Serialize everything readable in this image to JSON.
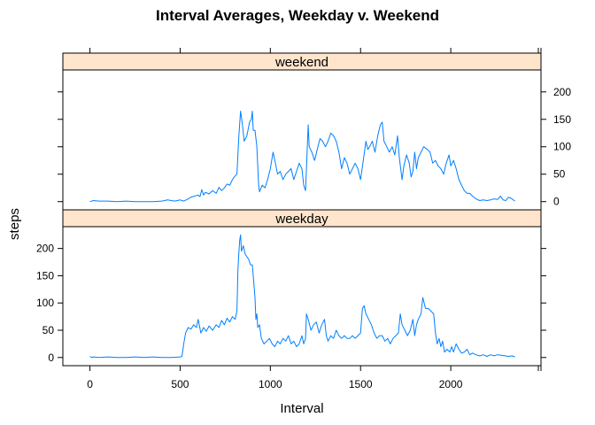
{
  "chart_data": {
    "type": "line",
    "title": "Interval Averages, Weekday v. Weekend",
    "xlabel": "Interval",
    "ylabel": "steps",
    "xlim": [
      -150,
      2500
    ],
    "ylim": [
      -15,
      240
    ],
    "x_ticks": [
      0,
      500,
      1000,
      1500,
      2000
    ],
    "y_ticks": [
      0,
      50,
      100,
      150,
      200
    ],
    "grid": false,
    "line_color": "#0080ff",
    "strip_color": "#ffe5cc",
    "panels": [
      {
        "strip_label": "weekend",
        "points": [
          [
            0,
            0
          ],
          [
            20,
            2
          ],
          [
            50,
            1
          ],
          [
            100,
            1
          ],
          [
            150,
            0
          ],
          [
            200,
            1
          ],
          [
            250,
            0
          ],
          [
            300,
            0
          ],
          [
            350,
            0
          ],
          [
            400,
            1
          ],
          [
            430,
            3
          ],
          [
            470,
            1
          ],
          [
            500,
            3
          ],
          [
            520,
            1
          ],
          [
            540,
            4
          ],
          [
            560,
            8
          ],
          [
            580,
            10
          ],
          [
            600,
            12
          ],
          [
            610,
            9
          ],
          [
            620,
            22
          ],
          [
            630,
            12
          ],
          [
            640,
            17
          ],
          [
            660,
            14
          ],
          [
            680,
            20
          ],
          [
            700,
            15
          ],
          [
            715,
            26
          ],
          [
            730,
            20
          ],
          [
            745,
            25
          ],
          [
            760,
            32
          ],
          [
            775,
            30
          ],
          [
            790,
            40
          ],
          [
            800,
            45
          ],
          [
            815,
            50
          ],
          [
            825,
            118
          ],
          [
            835,
            165
          ],
          [
            845,
            140
          ],
          [
            855,
            110
          ],
          [
            870,
            120
          ],
          [
            885,
            145
          ],
          [
            895,
            150
          ],
          [
            900,
            165
          ],
          [
            905,
            130
          ],
          [
            915,
            130
          ],
          [
            925,
            100
          ],
          [
            935,
            30
          ],
          [
            940,
            18
          ],
          [
            955,
            30
          ],
          [
            970,
            25
          ],
          [
            985,
            40
          ],
          [
            1000,
            60
          ],
          [
            1015,
            90
          ],
          [
            1025,
            75
          ],
          [
            1040,
            50
          ],
          [
            1055,
            55
          ],
          [
            1070,
            40
          ],
          [
            1085,
            50
          ],
          [
            1100,
            55
          ],
          [
            1115,
            60
          ],
          [
            1130,
            40
          ],
          [
            1145,
            55
          ],
          [
            1160,
            70
          ],
          [
            1175,
            60
          ],
          [
            1185,
            30
          ],
          [
            1195,
            20
          ],
          [
            1205,
            100
          ],
          [
            1210,
            140
          ],
          [
            1215,
            100
          ],
          [
            1230,
            90
          ],
          [
            1245,
            75
          ],
          [
            1260,
            95
          ],
          [
            1275,
            115
          ],
          [
            1290,
            110
          ],
          [
            1305,
            100
          ],
          [
            1320,
            110
          ],
          [
            1335,
            125
          ],
          [
            1350,
            120
          ],
          [
            1365,
            110
          ],
          [
            1380,
            90
          ],
          [
            1395,
            60
          ],
          [
            1410,
            80
          ],
          [
            1425,
            70
          ],
          [
            1440,
            50
          ],
          [
            1455,
            60
          ],
          [
            1470,
            70
          ],
          [
            1485,
            60
          ],
          [
            1500,
            40
          ],
          [
            1515,
            75
          ],
          [
            1530,
            110
          ],
          [
            1540,
            95
          ],
          [
            1550,
            100
          ],
          [
            1565,
            110
          ],
          [
            1580,
            90
          ],
          [
            1595,
            120
          ],
          [
            1610,
            140
          ],
          [
            1620,
            145
          ],
          [
            1630,
            110
          ],
          [
            1645,
            100
          ],
          [
            1660,
            90
          ],
          [
            1675,
            100
          ],
          [
            1690,
            85
          ],
          [
            1705,
            120
          ],
          [
            1715,
            80
          ],
          [
            1730,
            40
          ],
          [
            1740,
            65
          ],
          [
            1755,
            85
          ],
          [
            1770,
            70
          ],
          [
            1780,
            45
          ],
          [
            1790,
            55
          ],
          [
            1800,
            90
          ],
          [
            1810,
            60
          ],
          [
            1820,
            80
          ],
          [
            1835,
            90
          ],
          [
            1850,
            100
          ],
          [
            1870,
            95
          ],
          [
            1885,
            90
          ],
          [
            1900,
            70
          ],
          [
            1915,
            75
          ],
          [
            1930,
            65
          ],
          [
            1945,
            60
          ],
          [
            1960,
            50
          ],
          [
            1975,
            70
          ],
          [
            1990,
            85
          ],
          [
            2000,
            65
          ],
          [
            2015,
            75
          ],
          [
            2030,
            60
          ],
          [
            2045,
            40
          ],
          [
            2060,
            30
          ],
          [
            2075,
            20
          ],
          [
            2090,
            15
          ],
          [
            2105,
            15
          ],
          [
            2120,
            10
          ],
          [
            2140,
            5
          ],
          [
            2160,
            2
          ],
          [
            2180,
            3
          ],
          [
            2200,
            2
          ],
          [
            2220,
            3
          ],
          [
            2240,
            5
          ],
          [
            2260,
            4
          ],
          [
            2275,
            10
          ],
          [
            2290,
            3
          ],
          [
            2305,
            2
          ],
          [
            2320,
            8
          ],
          [
            2335,
            6
          ],
          [
            2355,
            1
          ]
        ]
      },
      {
        "strip_label": "weekday",
        "points": [
          [
            0,
            2
          ],
          [
            10,
            0
          ],
          [
            20,
            1
          ],
          [
            50,
            0
          ],
          [
            100,
            1
          ],
          [
            150,
            0
          ],
          [
            200,
            0
          ],
          [
            250,
            1
          ],
          [
            300,
            0
          ],
          [
            350,
            1
          ],
          [
            400,
            0
          ],
          [
            450,
            0
          ],
          [
            500,
            1
          ],
          [
            510,
            2
          ],
          [
            520,
            25
          ],
          [
            530,
            45
          ],
          [
            545,
            55
          ],
          [
            560,
            52
          ],
          [
            575,
            60
          ],
          [
            590,
            55
          ],
          [
            600,
            70
          ],
          [
            615,
            45
          ],
          [
            630,
            55
          ],
          [
            645,
            48
          ],
          [
            660,
            58
          ],
          [
            680,
            50
          ],
          [
            700,
            60
          ],
          [
            715,
            55
          ],
          [
            730,
            68
          ],
          [
            745,
            60
          ],
          [
            760,
            72
          ],
          [
            775,
            65
          ],
          [
            790,
            75
          ],
          [
            805,
            70
          ],
          [
            815,
            85
          ],
          [
            820,
            160
          ],
          [
            825,
            190
          ],
          [
            830,
            215
          ],
          [
            835,
            225
          ],
          [
            840,
            195
          ],
          [
            850,
            205
          ],
          [
            860,
            190
          ],
          [
            870,
            185
          ],
          [
            880,
            180
          ],
          [
            890,
            170
          ],
          [
            900,
            170
          ],
          [
            905,
            150
          ],
          [
            910,
            130
          ],
          [
            915,
            110
          ],
          [
            920,
            70
          ],
          [
            925,
            80
          ],
          [
            930,
            55
          ],
          [
            940,
            60
          ],
          [
            950,
            35
          ],
          [
            965,
            25
          ],
          [
            980,
            30
          ],
          [
            995,
            35
          ],
          [
            1010,
            25
          ],
          [
            1025,
            20
          ],
          [
            1040,
            30
          ],
          [
            1055,
            25
          ],
          [
            1070,
            35
          ],
          [
            1085,
            30
          ],
          [
            1100,
            40
          ],
          [
            1115,
            25
          ],
          [
            1130,
            30
          ],
          [
            1145,
            20
          ],
          [
            1160,
            25
          ],
          [
            1175,
            40
          ],
          [
            1185,
            25
          ],
          [
            1195,
            35
          ],
          [
            1200,
            80
          ],
          [
            1210,
            70
          ],
          [
            1225,
            50
          ],
          [
            1240,
            60
          ],
          [
            1255,
            65
          ],
          [
            1270,
            45
          ],
          [
            1285,
            60
          ],
          [
            1300,
            70
          ],
          [
            1310,
            40
          ],
          [
            1320,
            30
          ],
          [
            1335,
            40
          ],
          [
            1350,
            35
          ],
          [
            1365,
            50
          ],
          [
            1380,
            40
          ],
          [
            1395,
            35
          ],
          [
            1410,
            40
          ],
          [
            1425,
            35
          ],
          [
            1440,
            35
          ],
          [
            1455,
            40
          ],
          [
            1470,
            35
          ],
          [
            1485,
            40
          ],
          [
            1500,
            45
          ],
          [
            1510,
            90
          ],
          [
            1520,
            95
          ],
          [
            1530,
            80
          ],
          [
            1545,
            70
          ],
          [
            1560,
            60
          ],
          [
            1575,
            45
          ],
          [
            1590,
            35
          ],
          [
            1605,
            40
          ],
          [
            1620,
            40
          ],
          [
            1635,
            30
          ],
          [
            1650,
            35
          ],
          [
            1665,
            25
          ],
          [
            1680,
            35
          ],
          [
            1695,
            40
          ],
          [
            1710,
            45
          ],
          [
            1720,
            80
          ],
          [
            1730,
            60
          ],
          [
            1745,
            50
          ],
          [
            1760,
            40
          ],
          [
            1775,
            50
          ],
          [
            1790,
            70
          ],
          [
            1800,
            40
          ],
          [
            1810,
            60
          ],
          [
            1820,
            70
          ],
          [
            1835,
            80
          ],
          [
            1845,
            110
          ],
          [
            1860,
            90
          ],
          [
            1875,
            90
          ],
          [
            1890,
            85
          ],
          [
            1905,
            80
          ],
          [
            1915,
            45
          ],
          [
            1925,
            25
          ],
          [
            1935,
            35
          ],
          [
            1945,
            20
          ],
          [
            1955,
            30
          ],
          [
            1965,
            10
          ],
          [
            1980,
            15
          ],
          [
            1995,
            10
          ],
          [
            2005,
            20
          ],
          [
            2015,
            10
          ],
          [
            2030,
            25
          ],
          [
            2045,
            15
          ],
          [
            2060,
            8
          ],
          [
            2075,
            10
          ],
          [
            2090,
            15
          ],
          [
            2105,
            5
          ],
          [
            2120,
            8
          ],
          [
            2140,
            5
          ],
          [
            2160,
            3
          ],
          [
            2180,
            5
          ],
          [
            2200,
            2
          ],
          [
            2220,
            5
          ],
          [
            2240,
            3
          ],
          [
            2260,
            5
          ],
          [
            2280,
            4
          ],
          [
            2300,
            3
          ],
          [
            2320,
            2
          ],
          [
            2340,
            3
          ],
          [
            2355,
            1
          ]
        ]
      }
    ]
  }
}
